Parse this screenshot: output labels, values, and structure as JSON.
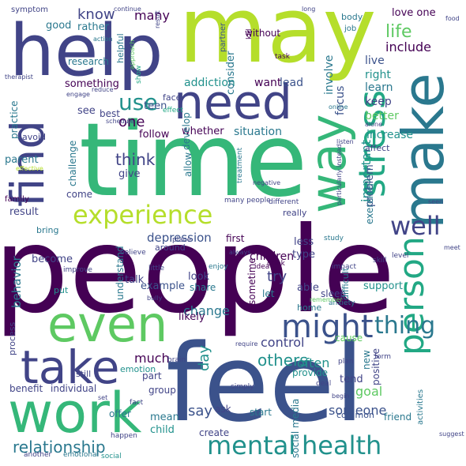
{
  "word_cloud": {
    "palette": {
      "purple": "#440154",
      "indigo": "#414487",
      "blue": "#2a788e",
      "teal": "#22a884",
      "green": "#5ec962",
      "lime": "#b5de2b"
    },
    "words": [
      {
        "text": "people"
      },
      {
        "text": "time"
      },
      {
        "text": "feel"
      },
      {
        "text": "may"
      },
      {
        "text": "help"
      },
      {
        "text": "find"
      },
      {
        "text": "make"
      },
      {
        "text": "need"
      },
      {
        "text": "work"
      },
      {
        "text": "way"
      },
      {
        "text": "even"
      },
      {
        "text": "take"
      },
      {
        "text": "experience"
      },
      {
        "text": "stress"
      },
      {
        "text": "might"
      },
      {
        "text": "person"
      },
      {
        "text": "mental"
      },
      {
        "text": "health"
      },
      {
        "text": "thing"
      },
      {
        "text": "well"
      },
      {
        "text": "life"
      },
      {
        "text": "use"
      },
      {
        "text": "relationship"
      },
      {
        "text": "know"
      },
      {
        "text": "include"
      },
      {
        "text": "think"
      },
      {
        "text": "others"
      },
      {
        "text": "try"
      },
      {
        "text": "change"
      },
      {
        "text": "often"
      },
      {
        "text": "depression"
      },
      {
        "text": "say"
      },
      {
        "text": "many"
      },
      {
        "text": "one"
      },
      {
        "text": "day"
      },
      {
        "text": "much"
      },
      {
        "text": "someone"
      },
      {
        "text": "behavior"
      },
      {
        "text": "social media"
      },
      {
        "text": "important"
      },
      {
        "text": "goal"
      },
      {
        "text": "increase"
      },
      {
        "text": "children"
      },
      {
        "text": "addiction"
      },
      {
        "text": "want"
      },
      {
        "text": "situation"
      },
      {
        "text": "better"
      },
      {
        "text": "focus"
      },
      {
        "text": "involve"
      },
      {
        "text": "consider"
      },
      {
        "text": "learn"
      },
      {
        "text": "keep"
      },
      {
        "text": "live"
      },
      {
        "text": "right"
      },
      {
        "text": "lead"
      },
      {
        "text": "without"
      },
      {
        "text": "love one"
      },
      {
        "text": "research"
      },
      {
        "text": "good"
      },
      {
        "text": "rather"
      },
      {
        "text": "something"
      },
      {
        "text": "see"
      },
      {
        "text": "teen"
      },
      {
        "text": "best"
      },
      {
        "text": "follow"
      },
      {
        "text": "whether"
      },
      {
        "text": "practice"
      },
      {
        "text": "parent"
      },
      {
        "text": "challenge"
      },
      {
        "text": "give"
      },
      {
        "text": "allow"
      },
      {
        "text": "develop"
      },
      {
        "text": "result"
      },
      {
        "text": "come"
      },
      {
        "text": "become"
      },
      {
        "text": "understand"
      },
      {
        "text": "around"
      },
      {
        "text": "first"
      },
      {
        "text": "less"
      },
      {
        "text": "type"
      },
      {
        "text": "able"
      },
      {
        "text": "talk"
      },
      {
        "text": "look"
      },
      {
        "text": "example"
      },
      {
        "text": "likely"
      },
      {
        "text": "sometime"
      },
      {
        "text": "share"
      },
      {
        "text": "control"
      },
      {
        "text": "let"
      },
      {
        "text": "home"
      },
      {
        "text": "support"
      },
      {
        "text": "problem"
      },
      {
        "text": "exercise"
      },
      {
        "text": "sleep"
      },
      {
        "text": "cause"
      },
      {
        "text": "provide"
      },
      {
        "text": "tend"
      },
      {
        "text": "new"
      },
      {
        "text": "positive"
      },
      {
        "text": "process"
      },
      {
        "text": "benefit"
      },
      {
        "text": "individual"
      },
      {
        "text": "part"
      },
      {
        "text": "group"
      },
      {
        "text": "ask"
      },
      {
        "text": "mean"
      },
      {
        "text": "child"
      },
      {
        "text": "create"
      },
      {
        "text": "offer"
      },
      {
        "text": "start"
      },
      {
        "text": "friend"
      },
      {
        "text": "activities"
      },
      {
        "text": "common"
      },
      {
        "text": "still"
      },
      {
        "text": "emotion"
      },
      {
        "text": "put"
      },
      {
        "text": "avoid"
      },
      {
        "text": "effective"
      },
      {
        "text": "family"
      },
      {
        "text": "bring"
      },
      {
        "text": "really"
      },
      {
        "text": "symptom"
      },
      {
        "text": "helpful"
      },
      {
        "text": "approach"
      },
      {
        "text": "show"
      },
      {
        "text": "face"
      },
      {
        "text": "effect"
      },
      {
        "text": "partner"
      },
      {
        "text": "body"
      },
      {
        "text": "job"
      },
      {
        "text": "task"
      },
      {
        "text": "kid"
      },
      {
        "text": "online"
      },
      {
        "text": "affect"
      },
      {
        "text": "difficult"
      },
      {
        "text": "anxiety"
      },
      {
        "text": "remember"
      },
      {
        "text": "skill"
      },
      {
        "text": "level"
      },
      {
        "text": "impact"
      },
      {
        "text": "drink"
      },
      {
        "text": "study"
      },
      {
        "text": "idea"
      },
      {
        "text": "enjoy"
      },
      {
        "text": "little"
      },
      {
        "text": "improve"
      },
      {
        "text": "therapist"
      },
      {
        "text": "action"
      },
      {
        "text": "engage"
      },
      {
        "text": "reduce"
      },
      {
        "text": "schedule"
      },
      {
        "text": "treatment"
      },
      {
        "text": "negative"
      },
      {
        "text": "many people"
      },
      {
        "text": "different"
      },
      {
        "text": "particularly instead"
      },
      {
        "text": "bully"
      },
      {
        "text": "always"
      },
      {
        "text": "place"
      },
      {
        "text": "believe"
      },
      {
        "text": "brain"
      },
      {
        "text": "simply"
      },
      {
        "text": "plan"
      },
      {
        "text": "deal"
      },
      {
        "text": "begin"
      },
      {
        "text": "form"
      },
      {
        "text": "fact"
      },
      {
        "text": "happen"
      },
      {
        "text": "another"
      },
      {
        "text": "emotional"
      },
      {
        "text": "social"
      },
      {
        "text": "require"
      },
      {
        "text": "continue"
      },
      {
        "text": "long"
      },
      {
        "text": "food"
      },
      {
        "text": "seen"
      },
      {
        "text": "meet"
      },
      {
        "text": "alone"
      },
      {
        "text": "suggest"
      },
      {
        "text": "listen"
      },
      {
        "text": "set"
      },
      {
        "text": "result"
      },
      {
        "text": "although"
      }
    ]
  }
}
